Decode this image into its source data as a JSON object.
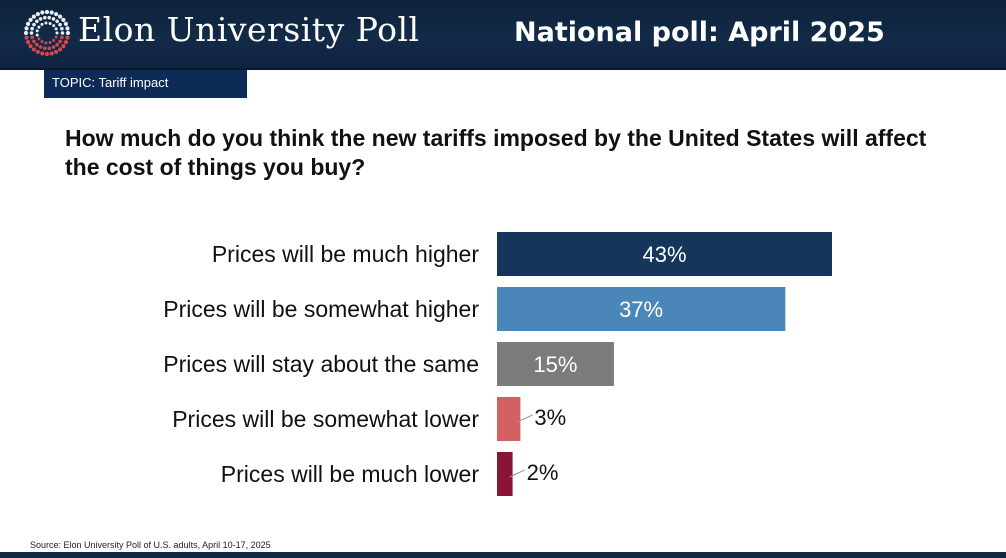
{
  "header": {
    "brand": "Elon University Poll",
    "poll_title": "National poll: April 2025"
  },
  "topic": "TOPIC: Tariff impact",
  "question": "How much do you think the new tariffs imposed by the United States will affect the cost of things you buy?",
  "source": "Source: Elon University Poll of U.S. adults, April 10-17, 2025",
  "colors": {
    "header_bg": "#122b48",
    "topic_bg": "#0e2a57",
    "much_higher": "#15365b",
    "somewhat_higher": "#4a86b8",
    "same": "#7b7b7b",
    "somewhat_lower": "#d36163",
    "much_lower": "#8a1434"
  },
  "chart_data": {
    "type": "bar",
    "orientation": "horizontal",
    "title": "",
    "xlabel": "",
    "ylabel": "",
    "categories": [
      "Prices will be much higher",
      "Prices will be somewhat higher",
      "Prices will stay about the same",
      "Prices will be somewhat lower",
      "Prices will be much lower"
    ],
    "values": [
      43,
      37,
      15,
      3,
      2
    ],
    "labels": [
      "43%",
      "37%",
      "15%",
      "3%",
      "2%"
    ],
    "bar_colors": [
      "#15365b",
      "#4a86b8",
      "#7b7b7b",
      "#d36163",
      "#8a1434"
    ],
    "xlim": [
      0,
      43
    ],
    "grid": false,
    "legend": "none"
  }
}
